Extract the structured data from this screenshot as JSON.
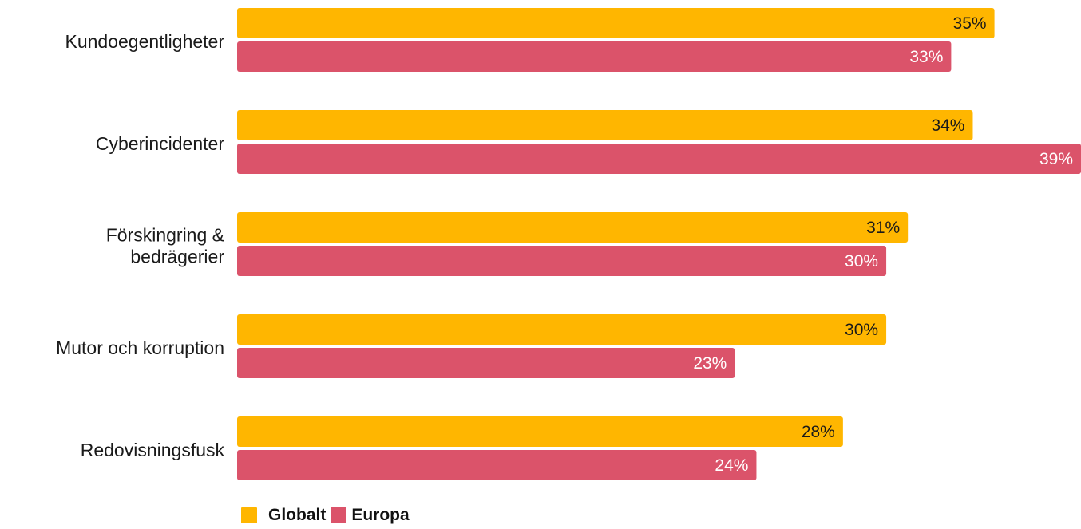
{
  "chart_data": {
    "type": "bar",
    "orientation": "horizontal",
    "categories": [
      "Kundoegentligheter",
      "Cyberincidenter",
      "Förskingring & bedrägerier",
      "Mutor och korruption",
      "Redovisningsfusk"
    ],
    "category_lines": [
      [
        "Kundoegentligheter"
      ],
      [
        "Cyberincidenter"
      ],
      [
        "Förskingring &",
        "bedrägerier"
      ],
      [
        "Mutor och korruption"
      ],
      [
        "Redovisningsfusk"
      ]
    ],
    "series": [
      {
        "name": "Globalt",
        "values": [
          35,
          34,
          31,
          30,
          28
        ],
        "labels": [
          "35%",
          "34%",
          "31%",
          "30%",
          "28%"
        ],
        "color": "#ffb600",
        "label_color": "#1a1a1a"
      },
      {
        "name": "Europa",
        "values": [
          33,
          39,
          30,
          23,
          24
        ],
        "labels": [
          "33%",
          "39%",
          "30%",
          "23%",
          "24%"
        ],
        "color": "#db536a",
        "label_color": "#ffffff"
      }
    ],
    "xlim": [
      0,
      39
    ],
    "grid": false,
    "legend_position": "bottom-left"
  }
}
